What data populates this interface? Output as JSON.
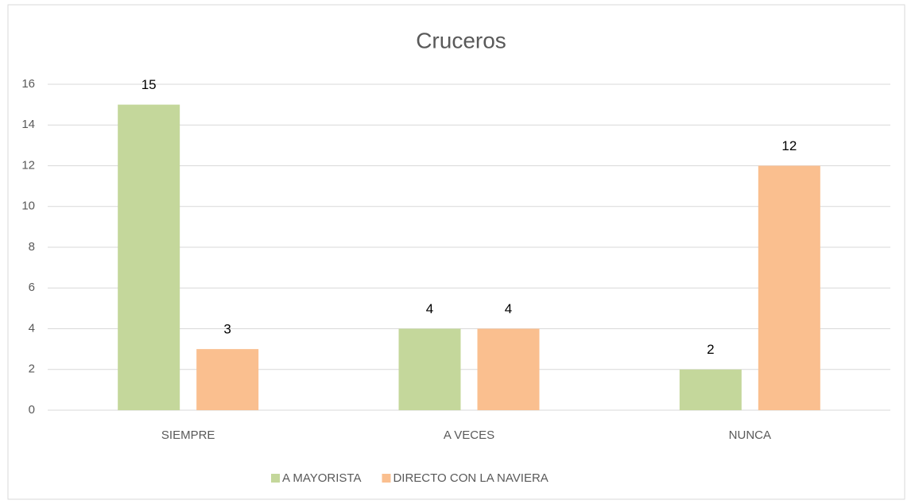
{
  "chart_data": {
    "type": "bar",
    "title": "Cruceros",
    "categories": [
      "SIEMPRE",
      "A VECES",
      "NUNCA"
    ],
    "series": [
      {
        "name": "A MAYORISTA",
        "color": "#c4d79b",
        "values": [
          15,
          4,
          2
        ]
      },
      {
        "name": "DIRECTO CON LA NAVIERA",
        "color": "#fabf8f",
        "values": [
          3,
          4,
          12
        ]
      }
    ],
    "ylim": [
      0,
      16
    ],
    "yticks": [
      0,
      2,
      4,
      6,
      8,
      10,
      12,
      14,
      16
    ],
    "grid": true,
    "legend": "bottom"
  }
}
